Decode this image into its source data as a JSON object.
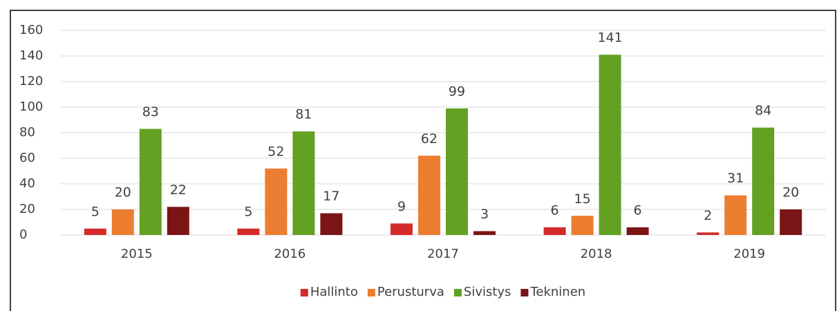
{
  "chart_data": {
    "type": "bar",
    "categories": [
      "2015",
      "2016",
      "2017",
      "2018",
      "2019"
    ],
    "series": [
      {
        "name": "Hallinto",
        "color": "#d42a2a",
        "values": [
          5,
          5,
          9,
          6,
          2
        ]
      },
      {
        "name": "Perusturva",
        "color": "#ed7d31",
        "values": [
          20,
          52,
          62,
          15,
          31
        ]
      },
      {
        "name": "Sivistys",
        "color": "#63a122",
        "values": [
          83,
          81,
          99,
          141,
          84
        ]
      },
      {
        "name": "Tekninen",
        "color": "#7b1515",
        "values": [
          22,
          17,
          3,
          6,
          20
        ]
      }
    ],
    "ylim": [
      0,
      160
    ],
    "yticks": [
      0,
      20,
      40,
      60,
      80,
      100,
      120,
      140,
      160
    ],
    "grid": true,
    "legend": "bottom"
  }
}
